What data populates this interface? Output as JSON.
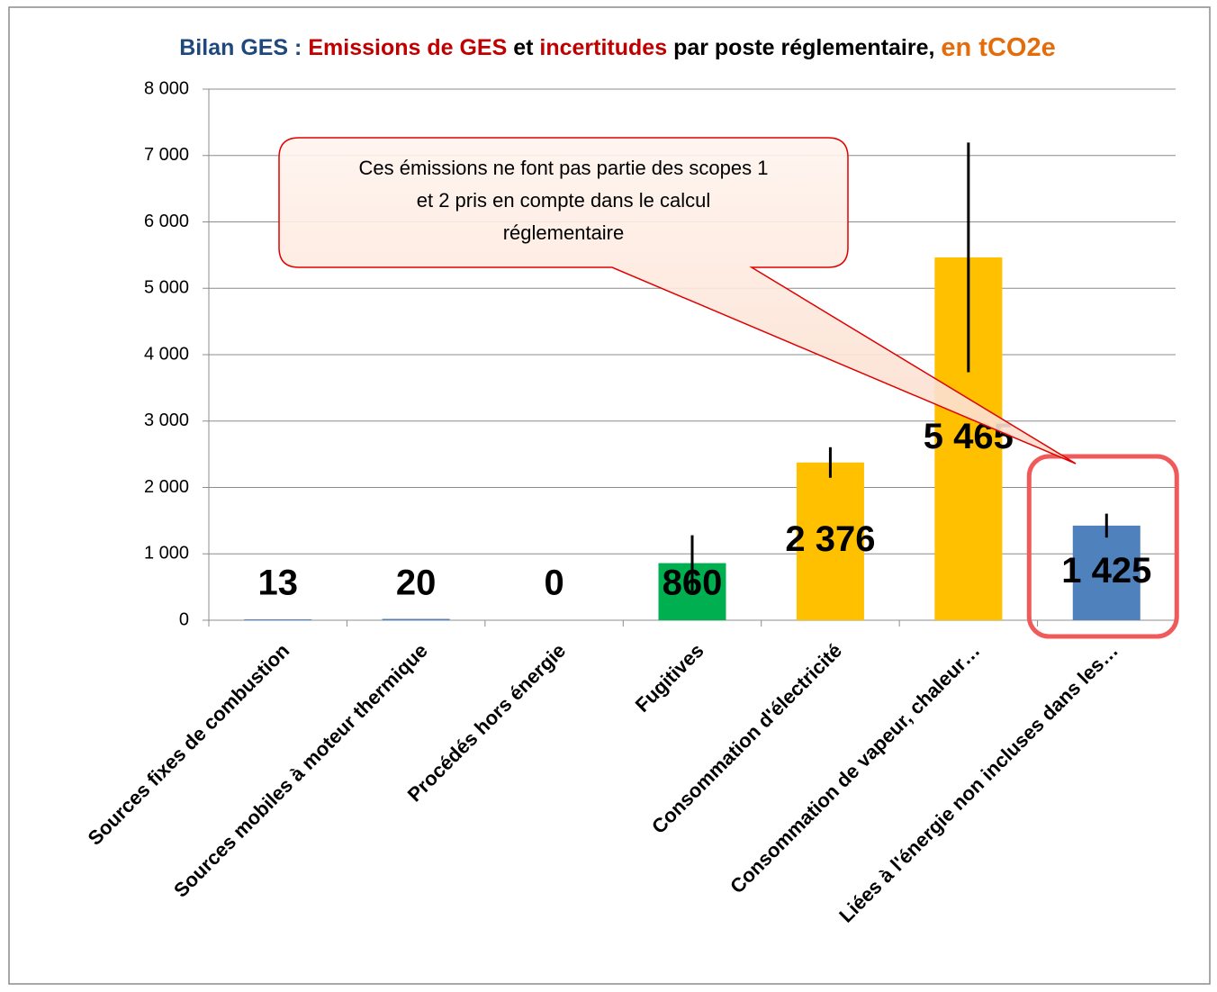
{
  "chart_data": {
    "type": "bar",
    "title_parts": [
      {
        "text": "Bilan GES :",
        "color": "#1f497d"
      },
      {
        "text": "Emissions de GES",
        "color": "#c00000"
      },
      {
        "text": "et",
        "color": "#000000"
      },
      {
        "text": "incertitudes",
        "color": "#c00000"
      },
      {
        "text": "par poste réglementaire,",
        "color": "#000000"
      },
      {
        "text": "en tCO2e",
        "color": "#e46c0a"
      }
    ],
    "categories": [
      "Sources fixes de combustion",
      "Sources mobiles à moteur thermique",
      "Procédés hors énergie",
      "Fugitives",
      "Consommation d'électricité",
      "Consommation de vapeur, chaleur…",
      "Liées à l'énergie non incluses dans les…"
    ],
    "values": [
      13,
      20,
      0,
      860,
      2376,
      5465,
      1425
    ],
    "value_labels": [
      "13",
      "20",
      "0",
      "860",
      "2 376",
      "5 465",
      "1 425"
    ],
    "errors": [
      0,
      0,
      0,
      420,
      230,
      1730,
      180
    ],
    "colors": [
      "#4f81bd",
      "#4f81bd",
      "#4f81bd",
      "#00b050",
      "#ffc000",
      "#ffc000",
      "#4f81bd"
    ],
    "ylim": [
      0,
      8000
    ],
    "yticks": [
      0,
      {
        "value": 1000,
        "label": "1 000"
      },
      {
        "value": 2000,
        "label": "2 000"
      },
      {
        "value": 3000,
        "label": "3 000"
      },
      {
        "value": 4000,
        "label": "4 000"
      },
      {
        "value": 5000,
        "label": "5 000"
      },
      {
        "value": 6000,
        "label": "6 000"
      },
      {
        "value": 7000,
        "label": "7 000"
      },
      {
        "value": 8000,
        "label": "8 000"
      }
    ],
    "grid": true,
    "annotation": [
      "Ces émissions ne font pas partie des scopes 1",
      "et 2 pris en compte dans le calcul",
      "réglementaire"
    ]
  }
}
